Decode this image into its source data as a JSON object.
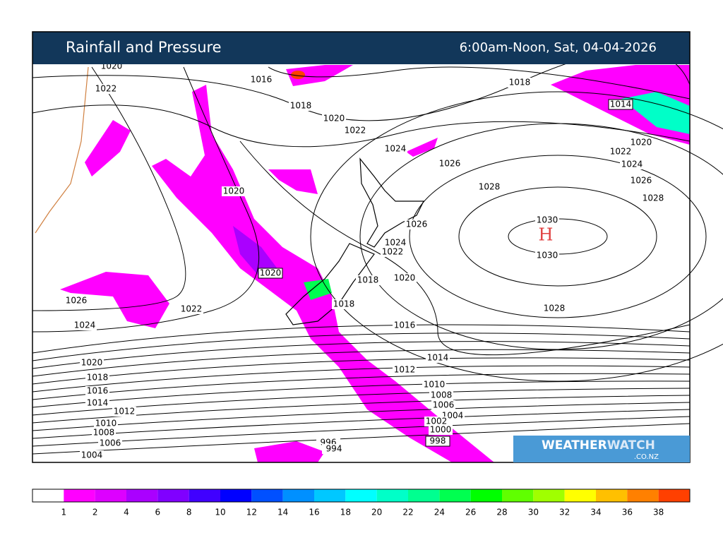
{
  "header": {
    "title": "Rainfall and Pressure",
    "time": "6:00am-Noon, Sat, 04-04-2026"
  },
  "high_marker": "H",
  "isobar_labels": [
    "1020",
    "1022",
    "1016",
    "1018",
    "1020",
    "1022",
    "1024",
    "1026",
    "1028",
    "1018",
    "1014",
    "1022",
    "1020",
    "1024",
    "1026",
    "1028",
    "1030",
    "1030",
    "1020",
    "1026",
    "1024",
    "1022",
    "1020",
    "1018",
    "1020",
    "1018",
    "1028",
    "1026",
    "1024",
    "1022",
    "1016",
    "1014",
    "1012",
    "1010",
    "1008",
    "1006",
    "1004",
    "1002",
    "1000",
    "998",
    "996",
    "994",
    "1020",
    "1018",
    "1016",
    "1014",
    "1012",
    "1010",
    "1008",
    "1006",
    "1004"
  ],
  "logo": {
    "part1": "WEATHER",
    "part2": "WATCH",
    "domain": ".CO.NZ"
  },
  "colorbar": {
    "labels": [
      1,
      2,
      4,
      6,
      8,
      10,
      12,
      14,
      16,
      18,
      20,
      22,
      24,
      26,
      28,
      30,
      32,
      34,
      36,
      38
    ],
    "colors": [
      "#ffffff",
      "#ff00ff",
      "#dd00ff",
      "#aa00ff",
      "#8000ff",
      "#4000ff",
      "#0000ff",
      "#0050ff",
      "#0090ff",
      "#00c8ff",
      "#00ffff",
      "#00ffc8",
      "#00ff90",
      "#00ff50",
      "#00ff00",
      "#60ff00",
      "#a0ff00",
      "#ffff00",
      "#ffc000",
      "#ff8000",
      "#ff4000"
    ]
  }
}
